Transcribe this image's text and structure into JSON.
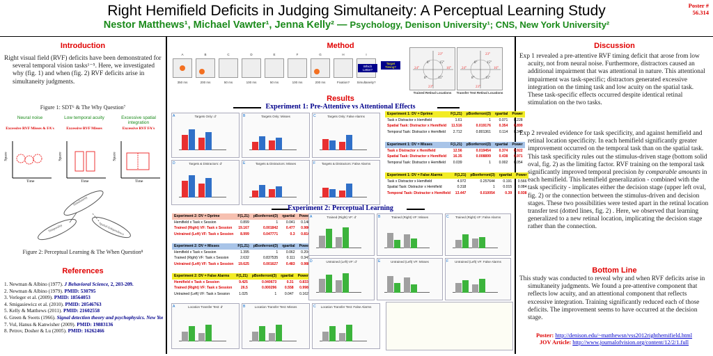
{
  "poster_number": [
    "Poster #",
    "56.314"
  ],
  "title": "Right Hemifield Deficits in Judging Simultaneity: A Perceptual Learning Study",
  "authors": "Nestor Matthews¹, Michael Vawter¹, Jenna Kelly² —",
  "affiliations": "Psychology, Denison University¹; CNS, New York University²",
  "intro": {
    "heading": "Introduction",
    "text": "Right visual field (RVF) deficits have been demonstrated for several temporal vision tasks¹⁻⁵. Here, we investigated why (fig. 1) and when (fig. 2) RVF deficits arise in simultaneity judgments."
  },
  "fig1": {
    "caption": "Figure 1: SDT⁶ & The Why Question⁷",
    "panels": [
      {
        "title": "Neural noise",
        "sub": "Excessive RVF Misses & FA's"
      },
      {
        "title": "Low temporal acuity",
        "sub": "Excessive RVF Misses"
      },
      {
        "title": "Excessive spatial integration",
        "sub": "Excessive RVF FA's"
      }
    ],
    "ylabel": "Space",
    "xlabel": "Time"
  },
  "fig2": {
    "caption": "Figure 2: Perceptual Learning & The When Question⁸",
    "labels": [
      "Temporality",
      "Simultaneity",
      "Spatial-Independence"
    ]
  },
  "refs": {
    "heading": "References",
    "items": [
      {
        "t": "1. Newman & Albino (1977). ",
        "j": "J Behavioral Science, ",
        "r": "2, 203-209."
      },
      {
        "t": "2. Newman & Albino (1979). ",
        "j": "",
        "r": "PMID: 530795"
      },
      {
        "t": "3. Verleger et al. (2009). ",
        "j": "",
        "r": "PMID: 18564053"
      },
      {
        "t": "4. Smigasiewicz et al. (2010). ",
        "j": "",
        "r": "PMID: 20546763"
      },
      {
        "t": "5. Kelly & Matthews (2011). ",
        "j": "",
        "r": "PMID: 21602558"
      },
      {
        "t": "6. Green & Swets (1966). ",
        "j": "Signal detection theory and psychophysics. New York.",
        "r": ""
      },
      {
        "t": "7. Vul, Hanus & Kanwisher (2009). ",
        "j": "",
        "r": "PMID: 19883136"
      },
      {
        "t": "8. Petrov, Dosher & Lu (2005). ",
        "j": "",
        "r": "PMID: 16262466"
      }
    ]
  },
  "method": {
    "heading": "Method",
    "frame_labels": [
      "A",
      "B",
      "C",
      "D",
      "E",
      "F",
      "G",
      "H",
      "I"
    ],
    "durations": [
      "350 ms",
      "200 ms",
      "50 ms",
      "100 ms",
      "50 ms",
      "100 ms",
      "200 ms",
      "Fixation?",
      "Simultaneity?"
    ],
    "prompts": [
      "Which Letter?",
      "Target Timing?"
    ],
    "trained": "Trained Retinal Locations",
    "untrained": "Transfer Test Retinal Locations",
    "angles": [
      "23°",
      "15°",
      "8°",
      "24°",
      "16°",
      "11°",
      "8°",
      "15°",
      "23°"
    ]
  },
  "results": {
    "heading": "Results",
    "exp1": "Experiment 1: Pre-Attentive vs Attentional Effects",
    "exp2": "Experiment 2: Perceptual Learning",
    "exp1_charts": [
      {
        "l": "A",
        "t": "Targets Only: d'"
      },
      {
        "l": "B",
        "t": "Targets Only: Misses"
      },
      {
        "l": "C",
        "t": "Targets Only: False Alarms"
      },
      {
        "l": "D",
        "t": "Targets & Distractors: d'"
      },
      {
        "l": "E",
        "t": "Targets & Distractors: Misses"
      },
      {
        "l": "F",
        "t": "Targets & Distractors: False Alarms"
      }
    ],
    "exp1_tables": [
      {
        "head": [
          "Experiment 1: DV = Dprime",
          "F(1,21)",
          "pBonferroni(3)",
          "ηpartial",
          "Power"
        ],
        "style": "yel",
        "rows": [
          [
            "Task x Distractor x Hemifield",
            "1.61",
            "1",
            "0.071",
            "0.228",
            ""
          ],
          [
            "Spatial Task: Distractor x Hemifield",
            "11.516",
            "0.019176",
            "0.354",
            "0.899",
            "red"
          ],
          [
            "Temporal Task: Distractor x Hemifield",
            "2.712",
            "0.801361",
            "0.114",
            "0.349",
            ""
          ]
        ]
      },
      {
        "head": [
          "Experiment 1: DV = Misses",
          "F(1,21)",
          "pBonferroni(3)",
          "ηpartial",
          "Power"
        ],
        "style": "blue",
        "rows": [
          [
            "Task x Distractor x Hemifield",
            "12.56",
            "0.019454",
            "0.374",
            "0.922",
            "red"
          ],
          [
            "Spatial Task: Distractor x Hemifield",
            "16.35",
            "0.008899",
            "0.438",
            "0.971",
            "red"
          ],
          [
            "Temporal Task: Distractor x Hemifield",
            "0.039",
            "1",
            "0.002",
            "0.054",
            ""
          ]
        ]
      },
      {
        "head": [
          "Experiment 1: DV = False Alarms",
          "F(1,21)",
          "pBonferroni(3)",
          "ηpartial",
          "Power"
        ],
        "style": "yel",
        "rows": [
          [
            "Task x Distractor x Hemifield",
            "4.972",
            "0.257644",
            "0.191",
            "0.566",
            ""
          ],
          [
            "Spatial Task: Distractor x Hemifield",
            "0.318",
            "1",
            "0.015",
            "0.084",
            ""
          ],
          [
            "Temporal Task: Distractor x Hemifield",
            "13.447",
            "0.010054",
            "0.39",
            "0.938",
            "red"
          ]
        ]
      }
    ],
    "exp2_tables": [
      {
        "head": [
          "Experiment 2: DV = Dprime",
          "F(1,21)",
          "pBonferroni(3)",
          "ηpartial",
          "Power"
        ],
        "style": "pink",
        "rows": [
          [
            "Hemifield x Task x Session",
            "0.899",
            "1",
            "0.041",
            "0.148",
            ""
          ],
          [
            "Trained (Right) VF: Task x Session",
            "19.167",
            "0.001842",
            "0.477",
            "0.986",
            "red"
          ],
          [
            "Untrained (Left) VF: Task x Session",
            "8.999",
            "0.047771",
            "0.3",
            "0.816",
            "red"
          ]
        ]
      },
      {
        "head": [
          "Experiment 2: DV = Misses",
          "F(1,21)",
          "pBonferroni(3)",
          "ηpartial",
          "Power"
        ],
        "style": "blue",
        "rows": [
          [
            "Hemifield x Task x Session",
            "1.395",
            "1",
            "0.062",
            "0.204",
            ""
          ],
          [
            "Trained (Right) VF: Task x Session",
            "2.632",
            "0.837535",
            "0.111",
            "0.341",
            ""
          ],
          [
            "Untrained (Left) VF: Task x Session",
            "19.625",
            "0.001627",
            "0.483",
            "0.988",
            "red"
          ]
        ]
      },
      {
        "head": [
          "Experiment 2: DV = False Alarms",
          "F(1,21)",
          "pBonferroni(3)",
          "ηpartial",
          "Power"
        ],
        "style": "yel",
        "rows": [
          [
            "Hemifield x Task x Session",
            "9.425",
            "0.040673",
            "0.31",
            "0.833",
            "red"
          ],
          [
            "Trained (Right) VF: Task x Session",
            "26.5",
            "0.000296",
            "0.558",
            "0.998",
            "red"
          ],
          [
            "Untrained (Left) VF: Task x Session",
            "1.025",
            "1",
            "0.047",
            "0.162",
            ""
          ]
        ]
      }
    ],
    "exp2_charts": [
      {
        "l": "A",
        "t": "Trained (Right) VF: d'"
      },
      {
        "l": "B",
        "t": "Trained (Right) VF: Misses"
      },
      {
        "l": "C",
        "t": "Trained (Right) VF: False Alarms"
      },
      {
        "l": "D",
        "t": "Untrained (Left) VF: d'"
      },
      {
        "l": "E",
        "t": "Untrained (Left) VF: Misses"
      },
      {
        "l": "F",
        "t": "Untrained (Left) VF: False Alarms"
      }
    ],
    "exp2_transfer": [
      {
        "l": "A",
        "t": "Location Transfer Test: d'"
      },
      {
        "l": "B",
        "t": "Location Transfer Test: Misses"
      },
      {
        "l": "C",
        "t": "Location Transfer Test: False Alarms"
      }
    ]
  },
  "discussion": {
    "heading": "Discussion",
    "p1": "Exp 1 revealed a pre-attentive RVF timing deficit that arose from low acuity, not from neural noise.  Furthermore, distractors caused an additional impairment that was attentional in nature.  This attentional impairment was task-specific; distractors generated excessive integration on the timing task and low acuity on the spatial task.  These task-specific effects occurred despite identical retinal stimulation on the two tasks.",
    "p2a": "Exp 2 revealed evidence for task specificity, and against hemifield and retinal location specificity.  In each hemifield significantly greater improvement occurred on the temporal task than on the spatial task.  This task specificity rules out the stimulus-driven stage (bottom solid oval, fig. 2) as the limiting factor.  RVF training on the temporal task significantly improved temporal precision ",
    "p2b": "by comparable amounts",
    "p2c": " in each hemifield.  This hemifield generalization - combined with the task specificity - implicates either the decision stage  (upper left oval, fig. 2) or the connection between the stimulus-driven and decision stages. These two possibilities were tested apart in the retinal location transfer test (dotted lines, fig. 2) .  Here, we observed that learning generalized to a new retinal location, implicating the decision stage rather than the connection."
  },
  "bottomline": {
    "heading": "Bottom Line",
    "text": "This study was conducted to reveal why and when RVF deficits arise in simultaneity judgments.  We found a pre-attentive component that reflects low acuity, and an attentional component that reflects excessive integration. Training significantly reduced each of those deficits.  The improvement seems to have occurred at the decision stage."
  },
  "footer": {
    "poster_label": "Poster:",
    "poster_url": "http://denison.edu/~matthewsn/vss2012righthemifield.html",
    "jov_label": "JOV Article:",
    "jov_url": "http://www.journalofvision.org/content/12/2/1.full"
  },
  "colors": {
    "red": "#e00000",
    "green": "#1a8a1a",
    "blue": "#00008b",
    "lvf": "#e83030",
    "rvf": "#3070c8",
    "train": "#3cb43c"
  }
}
